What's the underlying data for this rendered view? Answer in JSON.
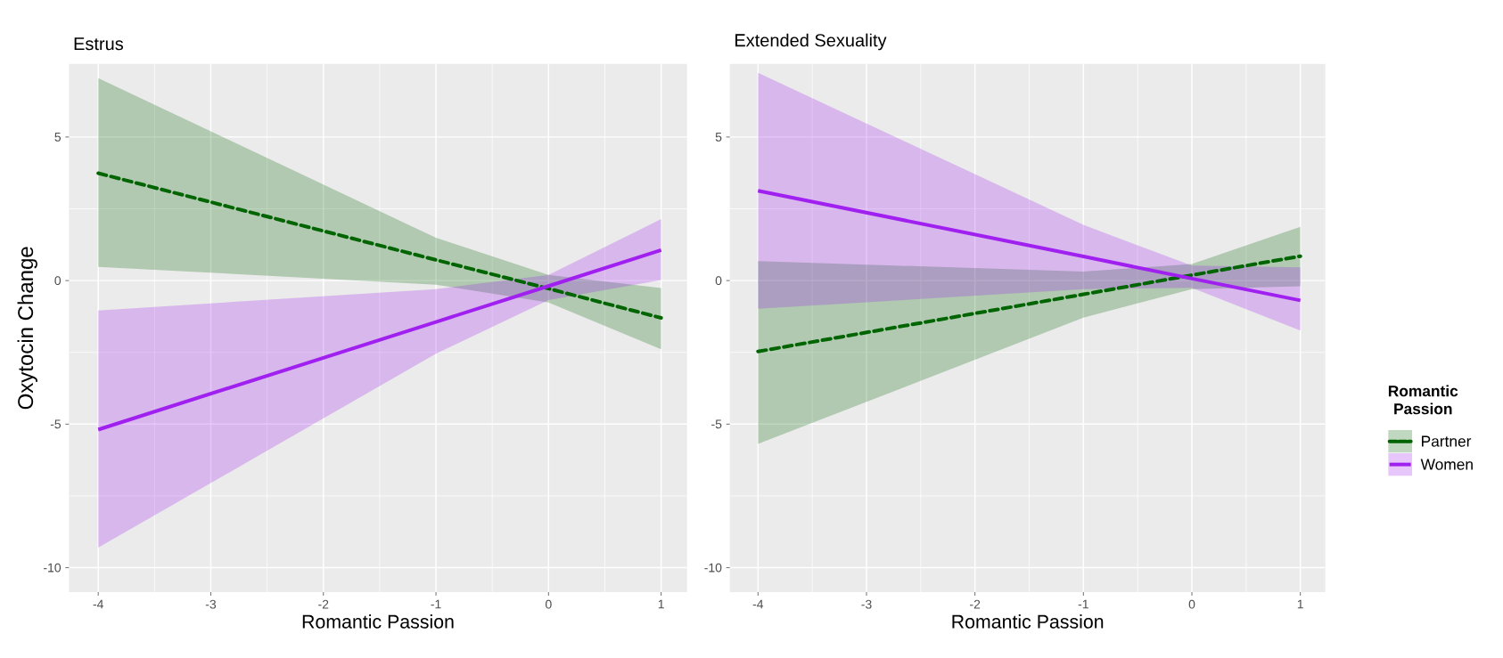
{
  "chart_data": [
    {
      "type": "line",
      "title": "Estrus",
      "xlabel": "Romantic Passion",
      "ylabel": "Oxytocin Change",
      "xlim": [
        -4.26,
        1.23
      ],
      "ylim": [
        -10.85,
        7.55
      ],
      "xticks": [
        -4,
        -3,
        -2,
        -1,
        0,
        1
      ],
      "yticks": [
        -10,
        -5,
        0,
        5
      ],
      "grid": true,
      "series": [
        {
          "color": "#006400",
          "line_style": "dashed",
          "x": [
            -4,
            -1,
            0,
            1
          ],
          "values": [
            3.74,
            0.72,
            -0.28,
            -1.3
          ],
          "lower": [
            0.48,
            -0.14,
            -0.76,
            -2.39
          ],
          "upper": [
            7.05,
            1.49,
            0.2,
            -0.26
          ]
        },
        {
          "color": "#a020f0",
          "line_style": "solid",
          "x": [
            -4,
            -1,
            0,
            1
          ],
          "values": [
            -5.19,
            -1.44,
            -0.19,
            1.06
          ],
          "lower": [
            -9.3,
            -2.55,
            -0.68,
            0.02
          ],
          "upper": [
            -1.04,
            -0.3,
            0.2,
            2.14
          ]
        }
      ]
    },
    {
      "type": "line",
      "title": "Extended Sexuality",
      "xlabel": "Romantic Passion",
      "xlim": [
        -4.26,
        1.23
      ],
      "ylim": [
        -10.85,
        7.55
      ],
      "xticks": [
        -4,
        -3,
        -2,
        -1,
        0,
        1
      ],
      "yticks": [
        -10,
        -5,
        0,
        5
      ],
      "grid": true,
      "legend": "right",
      "legend_title": "Romantic Passion",
      "series": [
        {
          "name": "Partner",
          "color": "#006400",
          "line_style": "dashed",
          "x": [
            -4,
            -1,
            0,
            1
          ],
          "values": [
            -2.47,
            -0.48,
            0.19,
            0.85
          ],
          "lower": [
            -5.69,
            -1.29,
            -0.3,
            -0.2
          ],
          "upper": [
            0.68,
            0.31,
            0.58,
            1.87
          ]
        },
        {
          "name": "Women",
          "color": "#a020f0",
          "line_style": "solid",
          "x": [
            -4,
            -1,
            0,
            1
          ],
          "values": [
            3.13,
            0.84,
            0.07,
            -0.69
          ],
          "lower": [
            -0.98,
            -0.3,
            -0.25,
            -1.74
          ],
          "upper": [
            7.24,
            1.94,
            0.52,
            0.46
          ]
        }
      ]
    }
  ]
}
